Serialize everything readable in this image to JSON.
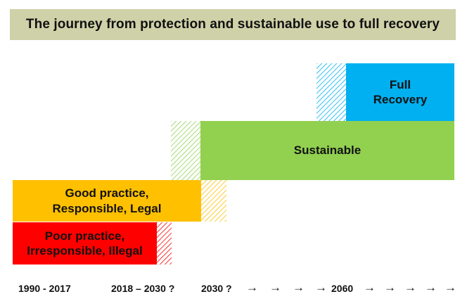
{
  "title": "The journey from protection and sustainable use to full recovery",
  "stages": [
    {
      "id": "poor",
      "line1": "Poor practice,",
      "line2": "Irresponsible, Illegal",
      "color": "#ff0000"
    },
    {
      "id": "good",
      "line1": "Good practice,",
      "line2": "Responsible, Legal",
      "color": "#ffc000"
    },
    {
      "id": "sustainable",
      "line1": "Sustainable",
      "color": "#92d050"
    },
    {
      "id": "full",
      "line1": "Full",
      "line2": "Recovery",
      "color": "#00b0f0"
    }
  ],
  "timeline": {
    "period1": "1990 - 2017",
    "period2": "2018 – 2030 ?",
    "period3": "2030 ?",
    "period4": "2060",
    "arrow": "→"
  }
}
